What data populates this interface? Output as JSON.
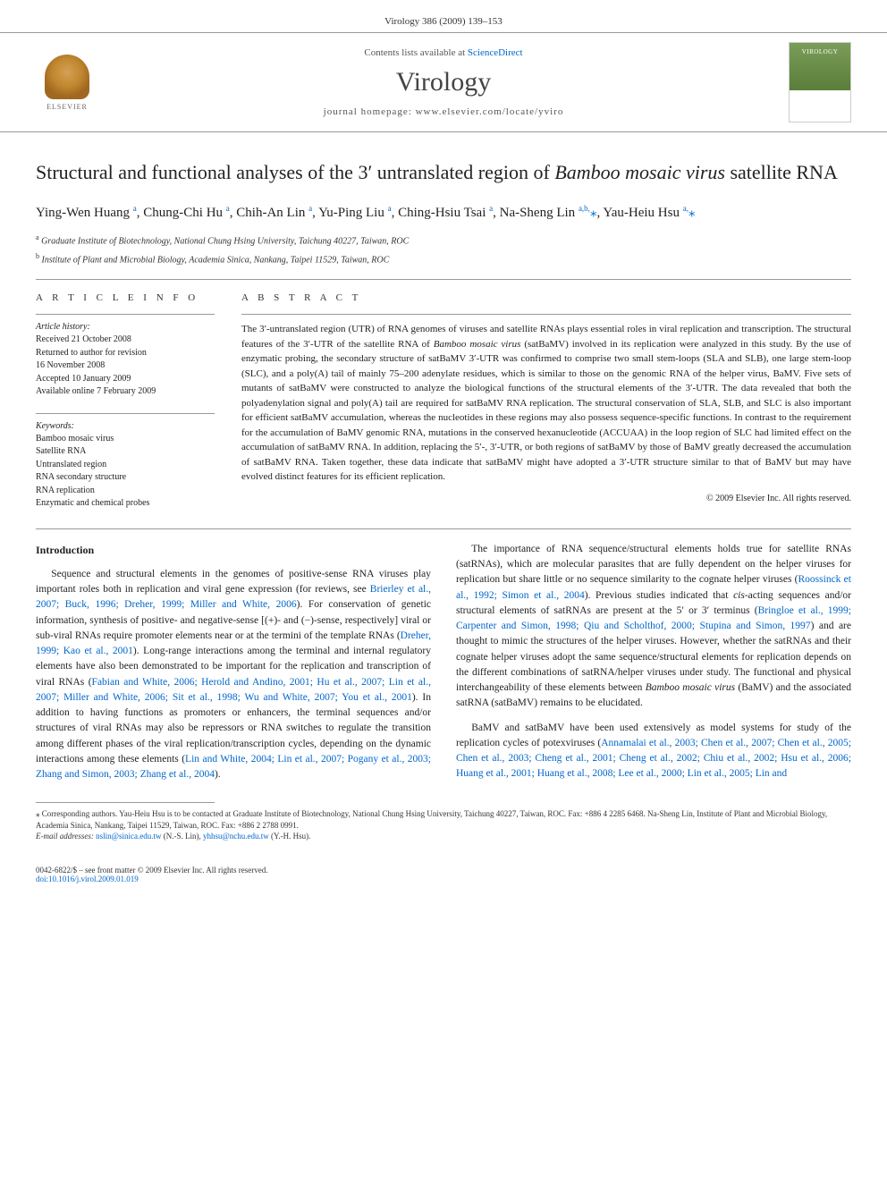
{
  "header": {
    "journal_ref": "Virology 386 (2009) 139–153",
    "contents_available": "Contents lists available at ",
    "sciencedirect": "ScienceDirect",
    "journal_name": "Virology",
    "homepage_label": "journal homepage: ",
    "homepage_url": "www.elsevier.com/locate/yviro",
    "elsevier_label": "ELSEVIER",
    "cover_label": "VIROLOGY"
  },
  "article": {
    "title_pre": "Structural and functional analyses of the 3′ untranslated region of ",
    "title_italic": "Bamboo mosaic virus",
    "title_post": " satellite RNA",
    "authors_html": "Ying-Wen Huang <sup>a</sup>, Chung-Chi Hu <sup>a</sup>, Chih-An Lin <sup>a</sup>, Yu-Ping Liu <sup>a</sup>, Ching-Hsiu Tsai <sup>a</sup>, Na-Sheng Lin <sup>a,b,</sup><span class='star'>⁎</span>, Yau-Heiu Hsu <sup>a,</sup><span class='star'>⁎</span>",
    "affiliations": {
      "a": "Graduate Institute of Biotechnology, National Chung Hsing University, Taichung 40227, Taiwan, ROC",
      "b": "Institute of Plant and Microbial Biology, Academia Sinica, Nankang, Taipei 11529, Taiwan, ROC"
    }
  },
  "info": {
    "header": "A R T I C L E   I N F O",
    "history_label": "Article history:",
    "received": "Received 21 October 2008",
    "returned": "Returned to author for revision",
    "returned_date": "16 November 2008",
    "accepted": "Accepted 10 January 2009",
    "online": "Available online 7 February 2009",
    "keywords_label": "Keywords:",
    "keywords": [
      "Bamboo mosaic virus",
      "Satellite RNA",
      "Untranslated region",
      "RNA secondary structure",
      "RNA replication",
      "Enzymatic and chemical probes"
    ]
  },
  "abstract": {
    "header": "A B S T R A C T",
    "text_pre": "The 3′-untranslated region (UTR) of RNA genomes of viruses and satellite RNAs plays essential roles in viral replication and transcription. The structural features of the 3′-UTR of the satellite RNA of ",
    "text_italic1": "Bamboo mosaic virus",
    "text_mid": " (satBaMV) involved in its replication were analyzed in this study. By the use of enzymatic probing, the secondary structure of satBaMV 3′-UTR was confirmed to comprise two small stem-loops (SLA and SLB), one large stem-loop (SLC), and a poly(A) tail of mainly 75–200 adenylate residues, which is similar to those on the genomic RNA of the helper virus, BaMV. Five sets of mutants of satBaMV were constructed to analyze the biological functions of the structural elements of the 3′-UTR. The data revealed that both the polyadenylation signal and poly(A) tail are required for satBaMV RNA replication. The structural conservation of SLA, SLB, and SLC is also important for efficient satBaMV accumulation, whereas the nucleotides in these regions may also possess sequence-specific functions. In contrast to the requirement for the accumulation of BaMV genomic RNA, mutations in the conserved hexanucleotide (ACCUAA) in the loop region of SLC had limited effect on the accumulation of satBaMV RNA. In addition, replacing the 5′-, 3′-UTR, or both regions of satBaMV by those of BaMV greatly decreased the accumulation of satBaMV RNA. Taken together, these data indicate that satBaMV might have adopted a 3′-UTR structure similar to that of BaMV but may have evolved distinct features for its efficient replication.",
    "copyright": "© 2009 Elsevier Inc. All rights reserved."
  },
  "body": {
    "intro_title": "Introduction",
    "p1_pre": "Sequence and structural elements in the genomes of positive-sense RNA viruses play important roles both in replication and viral gene expression (for reviews, see ",
    "p1_cite1": "Brierley et al., 2007; Buck, 1996; Dreher, 1999; Miller and White, 2006",
    "p1_mid1": "). For conservation of genetic information, synthesis of positive- and negative-sense [(+)- and (−)-sense, respectively] viral or sub-viral RNAs require promoter elements near or at the termini of the template RNAs (",
    "p1_cite2": "Dreher, 1999; Kao et al., 2001",
    "p1_mid2": "). Long-range interactions among the terminal and internal regulatory elements have also been demonstrated to be important for the replication and transcription of viral RNAs (",
    "p1_cite3": "Fabian and White, 2006; Herold and Andino, 2001; Hu et al., 2007; Lin et al., 2007; Miller and White, 2006; Sit et al., 1998; Wu and White, 2007; You et al., 2001",
    "p1_mid3": "). In addition to having functions as promoters or enhancers, the terminal sequences and/or structures of viral RNAs may also be repressors or RNA switches to regulate the transition among different",
    "p1b_pre": "phases of the viral replication/transcription cycles, depending on the dynamic interactions among these elements (",
    "p1b_cite": "Lin and White, 2004; Lin et al., 2007; Pogany et al., 2003; Zhang and Simon, 2003; Zhang et al., 2004",
    "p1b_post": ").",
    "p2_pre": "The importance of RNA sequence/structural elements holds true for satellite RNAs (satRNAs), which are molecular parasites that are fully dependent on the helper viruses for replication but share little or no sequence similarity to the cognate helper viruses (",
    "p2_cite1": "Roossinck et al., 1992; Simon et al., 2004",
    "p2_mid1": "). Previous studies indicated that ",
    "p2_ital1": "cis",
    "p2_mid1b": "-acting sequences and/or structural elements of satRNAs are present at the 5′ or 3′ terminus (",
    "p2_cite2": "Bringloe et al., 1999; Carpenter and Simon, 1998; Qiu and Scholthof, 2000; Stupina and Simon, 1997",
    "p2_mid2": ") and are thought to mimic the structures of the helper viruses. However, whether the satRNAs and their cognate helper viruses adopt the same sequence/structural elements for replication depends on the different combinations of satRNA/helper viruses under study. The functional and physical interchangeability of these elements between ",
    "p2_ital2": "Bamboo mosaic virus",
    "p2_mid3": " (BaMV) and the associated satRNA (satBaMV) remains to be elucidated.",
    "p3_pre": "BaMV and satBaMV have been used extensively as model systems for study of the replication cycles of potexviruses (",
    "p3_cite": "Annamalai et al., 2003; Chen et al., 2007; Chen et al., 2005; Chen et al., 2003; Cheng et al., 2001; Cheng et al., 2002; Chiu et al., 2002; Hsu et al., 2006; Huang et al., 2001; Huang et al., 2008; Lee et al., 2000; Lin et al., 2005; Lin and"
  },
  "footer": {
    "corr": "⁎ Corresponding authors. Yau-Heiu Hsu is to be contacted at Graduate Institute of Biotechnology, National Chung Hsing University, Taichung 40227, Taiwan, ROC. Fax: +886 4 2285 6468. Na-Sheng Lin, Institute of Plant and Microbial Biology, Academia Sinica, Nankang, Taipei 11529, Taiwan, ROC. Fax: +886 2 2788 0991.",
    "email_label": "E-mail addresses: ",
    "email1": "nslin@sinica.edu.tw",
    "email1_who": " (N.-S. Lin), ",
    "email2": "yhhsu@nchu.edu.tw",
    "email2_who": " (Y.-H. Hsu).",
    "front_matter": "0042-6822/$ – see front matter © 2009 Elsevier Inc. All rights reserved.",
    "doi": "doi:10.1016/j.virol.2009.01.019"
  },
  "colors": {
    "link": "#0066cc",
    "text": "#222222",
    "rule": "#999999"
  }
}
